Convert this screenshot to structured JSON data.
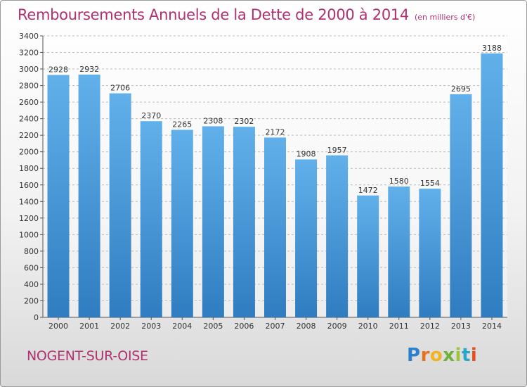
{
  "header": {
    "title": "Remboursements Annuels de la Dette de 2000 à 2014",
    "subtitle": "(en milliers d'€)"
  },
  "footer": {
    "city": "NOGENT-SUR-OISE",
    "logo_text": "Proxiti"
  },
  "colors": {
    "bar_light": "#62b0ea",
    "bar_dark": "#2f7dc0",
    "title": "#b03070"
  },
  "chart_data": {
    "type": "bar",
    "title": "Remboursements Annuels de la Dette de 2000 à 2014",
    "xlabel": "",
    "ylabel": "(en milliers d'€)",
    "categories": [
      "2000",
      "2001",
      "2002",
      "2003",
      "2004",
      "2005",
      "2006",
      "2007",
      "2008",
      "2009",
      "2010",
      "2011",
      "2012",
      "2013",
      "2014"
    ],
    "values": [
      2928,
      2932,
      2706,
      2370,
      2265,
      2308,
      2302,
      2172,
      1908,
      1957,
      1472,
      1580,
      1554,
      2695,
      3188
    ],
    "ylim": [
      0,
      3400
    ],
    "yticks": [
      0,
      200,
      400,
      600,
      800,
      1000,
      1200,
      1400,
      1600,
      1800,
      2000,
      2200,
      2400,
      2600,
      2800,
      3000,
      3200,
      3400
    ],
    "grid": true
  }
}
